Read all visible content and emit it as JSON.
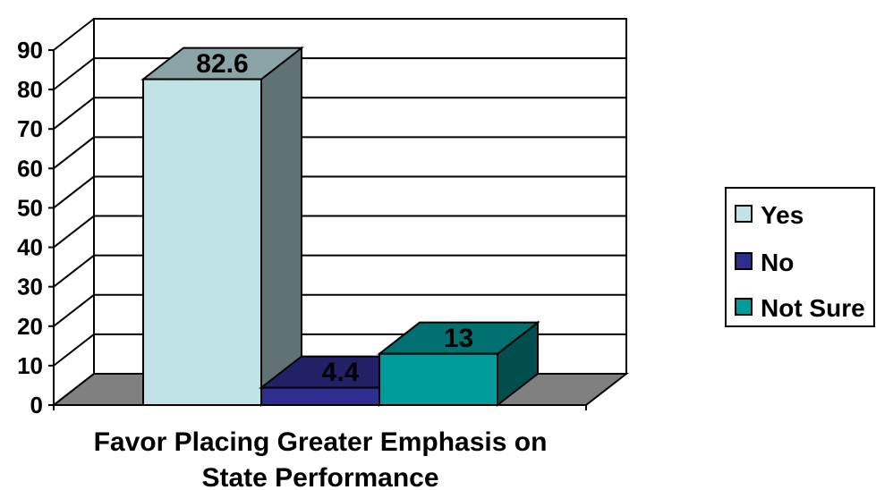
{
  "chart_data": {
    "type": "bar",
    "style": "3d",
    "categories": [
      "Favor Placing Greater Emphasis on State Performance"
    ],
    "xlabel_lines": [
      "Favor Placing Greater Emphasis on",
      "State Performance"
    ],
    "series": [
      {
        "name": "Yes",
        "values": [
          82.6
        ],
        "label": "82.6",
        "color": "#bfe3e6"
      },
      {
        "name": "No",
        "values": [
          4.4
        ],
        "label": "4.4",
        "color": "#2e2e8f"
      },
      {
        "name": "Not Sure",
        "values": [
          13
        ],
        "label": "13",
        "color": "#009c9c"
      }
    ],
    "ylim": [
      0,
      90
    ],
    "yticks": [
      0,
      10,
      20,
      30,
      40,
      50,
      60,
      70,
      80,
      90
    ],
    "grid": true,
    "legend": "right",
    "floor_color": "#808080"
  }
}
